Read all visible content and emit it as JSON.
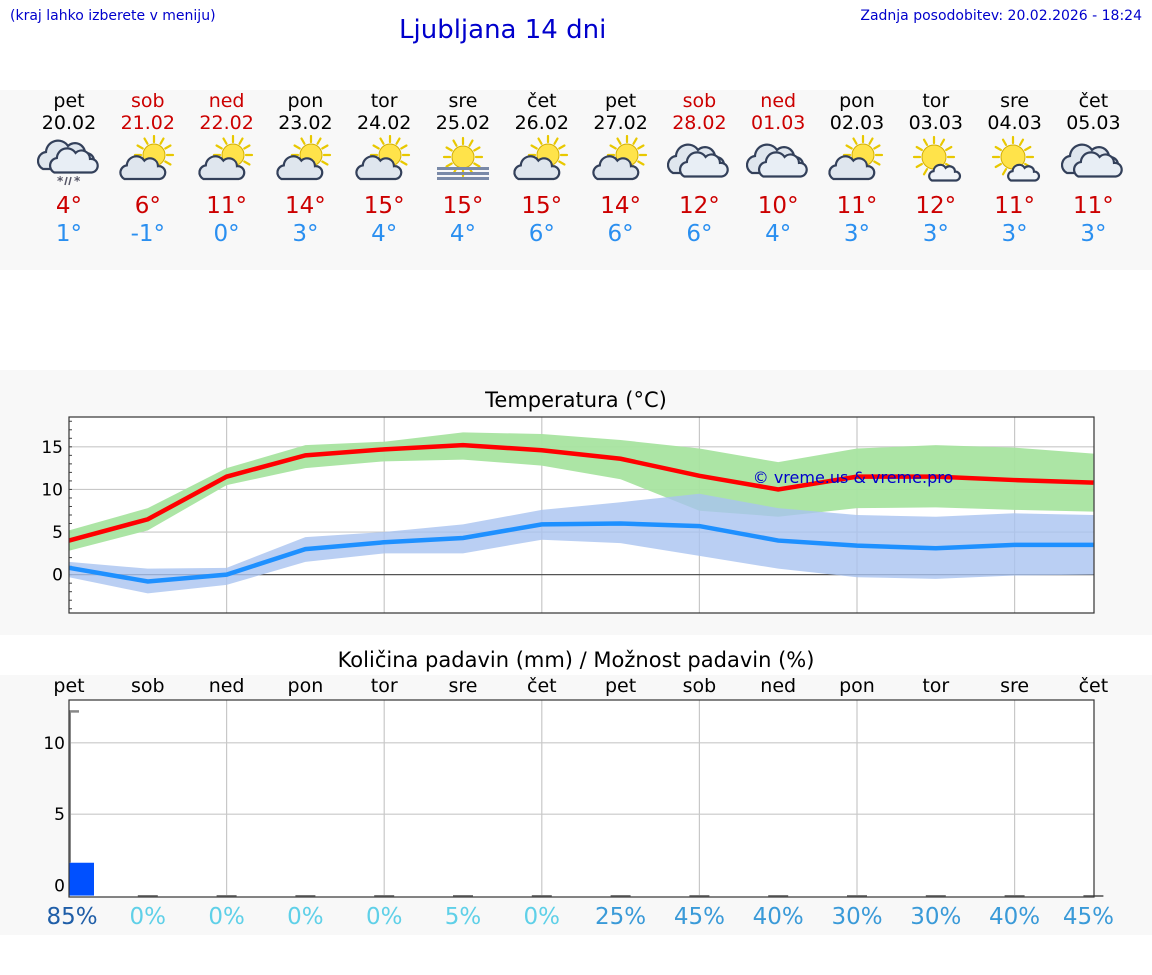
{
  "header": {
    "hint": "(kraj lahko izberete v meniju)",
    "title": "Ljubljana 14 dni",
    "updated": "Zadnja posodobitev: 20.02.2026 - 18:24"
  },
  "days": [
    {
      "name": "pet",
      "date": "20.02",
      "weekend": false,
      "icon": "cloud-sleet-icon",
      "tmax": "4°",
      "tmin": "1°"
    },
    {
      "name": "sob",
      "date": "21.02",
      "weekend": true,
      "icon": "sun-cloud-icon",
      "tmax": "6°",
      "tmin": "-1°"
    },
    {
      "name": "ned",
      "date": "22.02",
      "weekend": true,
      "icon": "sun-cloud-icon",
      "tmax": "11°",
      "tmin": "0°"
    },
    {
      "name": "pon",
      "date": "23.02",
      "weekend": false,
      "icon": "sun-cloud-icon",
      "tmax": "14°",
      "tmin": "3°"
    },
    {
      "name": "tor",
      "date": "24.02",
      "weekend": false,
      "icon": "sun-cloud-icon",
      "tmax": "15°",
      "tmin": "4°"
    },
    {
      "name": "sre",
      "date": "25.02",
      "weekend": false,
      "icon": "sun-fog-icon",
      "tmax": "15°",
      "tmin": "4°"
    },
    {
      "name": "čet",
      "date": "26.02",
      "weekend": false,
      "icon": "sun-cloud-icon",
      "tmax": "15°",
      "tmin": "6°"
    },
    {
      "name": "pet",
      "date": "27.02",
      "weekend": false,
      "icon": "sun-cloud-icon",
      "tmax": "14°",
      "tmin": "6°"
    },
    {
      "name": "sob",
      "date": "28.02",
      "weekend": true,
      "icon": "cloud-icon",
      "tmax": "12°",
      "tmin": "6°"
    },
    {
      "name": "ned",
      "date": "01.03",
      "weekend": true,
      "icon": "cloud-icon",
      "tmax": "10°",
      "tmin": "4°"
    },
    {
      "name": "pon",
      "date": "02.03",
      "weekend": false,
      "icon": "sun-cloud-icon",
      "tmax": "11°",
      "tmin": "3°"
    },
    {
      "name": "tor",
      "date": "03.03",
      "weekend": false,
      "icon": "sun-small-cloud-icon",
      "tmax": "12°",
      "tmin": "3°"
    },
    {
      "name": "sre",
      "date": "04.03",
      "weekend": false,
      "icon": "sun-small-cloud-icon",
      "tmax": "11°",
      "tmin": "3°"
    },
    {
      "name": "čet",
      "date": "05.03",
      "weekend": false,
      "icon": "cloud-icon",
      "tmax": "11°",
      "tmin": "3°"
    }
  ],
  "colors": {
    "max_line": "#ff0000",
    "max_band": "#a8e4a0",
    "min_line": "#1e90ff",
    "min_band": "#a9c3f0",
    "bar": "#0050ff",
    "weekend": "#cc0000",
    "link": "#0000cc"
  },
  "watermark": "© vreme.us & vreme.pro",
  "chart_data": [
    {
      "type": "line",
      "title": "Temperatura (°C)",
      "x": [
        "pet",
        "sob",
        "ned",
        "pon",
        "tor",
        "sre",
        "čet",
        "pet",
        "sob",
        "ned",
        "pon",
        "tor",
        "sre",
        "čet"
      ],
      "ylim": [
        -4.5,
        18.5
      ],
      "yticks": [
        0,
        5,
        10,
        15
      ],
      "grid": true,
      "series": [
        {
          "name": "max",
          "values": [
            4,
            6.5,
            11.5,
            14,
            14.7,
            15.2,
            14.6,
            13.6,
            11.6,
            10,
            11.5,
            11.5,
            11.1,
            10.8
          ],
          "band_low": [
            2.8,
            5.2,
            10.5,
            12.5,
            13.3,
            13.5,
            12.8,
            11.2,
            7.5,
            6.8,
            7.8,
            7.9,
            7.6,
            7.4
          ],
          "band_high": [
            5.2,
            7.8,
            12.5,
            15.2,
            15.6,
            16.7,
            16.5,
            15.8,
            14.8,
            13.2,
            14.8,
            15.2,
            14.9,
            14.2
          ]
        },
        {
          "name": "min",
          "values": [
            0.8,
            -0.8,
            0,
            3,
            3.8,
            4.3,
            5.9,
            6,
            5.7,
            4,
            3.4,
            3.1,
            3.5,
            3.5
          ],
          "band_low": [
            -0.3,
            -2.2,
            -1.2,
            1.5,
            2.5,
            2.5,
            4.1,
            3.7,
            2.2,
            0.7,
            -0.3,
            -0.5,
            -0.1,
            0
          ],
          "band_high": [
            1.5,
            0.7,
            0.8,
            4.4,
            5,
            5.9,
            7.6,
            8.5,
            9.5,
            7.8,
            7,
            6.8,
            7.2,
            7
          ]
        }
      ]
    },
    {
      "type": "bar",
      "title": "Količina padavin (mm) / Možnost padavin (%)",
      "categories": [
        "pet",
        "sob",
        "ned",
        "pon",
        "tor",
        "sre",
        "čet",
        "pet",
        "sob",
        "ned",
        "pon",
        "tor",
        "sre",
        "čet"
      ],
      "values": [
        1.6,
        0,
        0,
        0,
        0,
        0,
        0,
        0,
        0,
        0,
        0,
        0,
        0,
        0
      ],
      "range_high": [
        12.2,
        0,
        0,
        0,
        0,
        0,
        0,
        0,
        0,
        0,
        0,
        0,
        0,
        0
      ],
      "ylim": [
        -0.8,
        13
      ],
      "yticks": [
        0,
        5,
        10
      ],
      "probability": [
        "85%",
        "0%",
        "0%",
        "0%",
        "0%",
        "5%",
        "0%",
        "25%",
        "45%",
        "40%",
        "30%",
        "30%",
        "40%",
        "45%"
      ],
      "grid": true
    }
  ]
}
